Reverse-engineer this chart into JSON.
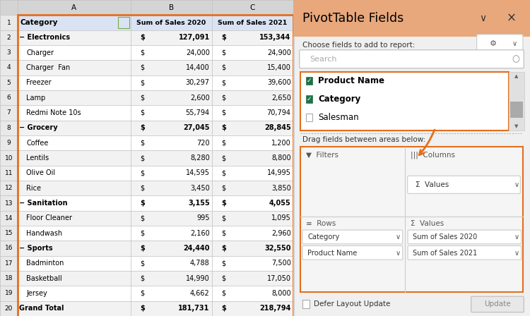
{
  "table": {
    "headers": [
      "Category",
      "Sum of Sales 2020",
      "Sum of Sales 2021"
    ],
    "rows": [
      {
        "label": "− Electronics",
        "bold": true,
        "indent": false,
        "s2020": "127,091",
        "s2021": "153,344",
        "bg": "#f2f2f2"
      },
      {
        "label": "Charger",
        "bold": false,
        "indent": true,
        "s2020": "24,000",
        "s2021": "24,900",
        "bg": "#ffffff"
      },
      {
        "label": "Charger  Fan",
        "bold": false,
        "indent": true,
        "s2020": "14,400",
        "s2021": "15,400",
        "bg": "#f2f2f2"
      },
      {
        "label": "Freezer",
        "bold": false,
        "indent": true,
        "s2020": "30,297",
        "s2021": "39,600",
        "bg": "#ffffff"
      },
      {
        "label": "Lamp",
        "bold": false,
        "indent": true,
        "s2020": "2,600",
        "s2021": "2,650",
        "bg": "#f2f2f2"
      },
      {
        "label": "Redmi Note 10s",
        "bold": false,
        "indent": true,
        "s2020": "55,794",
        "s2021": "70,794",
        "bg": "#ffffff"
      },
      {
        "label": "− Grocery",
        "bold": true,
        "indent": false,
        "s2020": "27,045",
        "s2021": "28,845",
        "bg": "#f2f2f2"
      },
      {
        "label": "Coffee",
        "bold": false,
        "indent": true,
        "s2020": "720",
        "s2021": "1,200",
        "bg": "#ffffff"
      },
      {
        "label": "Lentils",
        "bold": false,
        "indent": true,
        "s2020": "8,280",
        "s2021": "8,800",
        "bg": "#f2f2f2"
      },
      {
        "label": "Olive Oil",
        "bold": false,
        "indent": true,
        "s2020": "14,595",
        "s2021": "14,995",
        "bg": "#ffffff"
      },
      {
        "label": "Rice",
        "bold": false,
        "indent": true,
        "s2020": "3,450",
        "s2021": "3,850",
        "bg": "#f2f2f2"
      },
      {
        "label": "− Sanitation",
        "bold": true,
        "indent": false,
        "s2020": "3,155",
        "s2021": "4,055",
        "bg": "#ffffff"
      },
      {
        "label": "Floor Cleaner",
        "bold": false,
        "indent": true,
        "s2020": "995",
        "s2021": "1,095",
        "bg": "#f2f2f2"
      },
      {
        "label": "Handwash",
        "bold": false,
        "indent": true,
        "s2020": "2,160",
        "s2021": "2,960",
        "bg": "#ffffff"
      },
      {
        "label": "− Sports",
        "bold": true,
        "indent": false,
        "s2020": "24,440",
        "s2021": "32,550",
        "bg": "#f2f2f2"
      },
      {
        "label": "Badminton",
        "bold": false,
        "indent": true,
        "s2020": "4,788",
        "s2021": "7,500",
        "bg": "#ffffff"
      },
      {
        "label": "Basketball",
        "bold": false,
        "indent": true,
        "s2020": "14,990",
        "s2021": "17,050",
        "bg": "#f2f2f2"
      },
      {
        "label": "Jersey",
        "bold": false,
        "indent": true,
        "s2020": "4,662",
        "s2021": "8,000",
        "bg": "#ffffff"
      },
      {
        "label": "Grand Total",
        "bold": true,
        "indent": false,
        "s2020": "181,731",
        "s2021": "218,794",
        "bg": "#f2f2f2"
      }
    ],
    "header_bg": "#dae3f3",
    "border_color": "#bfbfbf",
    "outer_border": "#e36f1e",
    "green_border": "#70ad47"
  },
  "pivot_panel": {
    "bg": "#f0f0f0",
    "header_bg": "#e8a87c",
    "header_text": "PivotTable Fields",
    "subtitle": "Choose fields to add to report:",
    "fields": [
      {
        "name": "Product Name",
        "checked": true
      },
      {
        "name": "Category",
        "checked": true
      },
      {
        "name": "Salesman",
        "checked": false
      }
    ],
    "drag_text": "Drag fields between areas below:",
    "areas": {
      "filters_label": "Filters",
      "columns_label": "Columns",
      "columns_value": "Σ  Values",
      "rows_label": "Rows",
      "rows_items": [
        "Category",
        "Product Name"
      ],
      "values_label": "Values",
      "values_items": [
        "Sum of Sales 2020",
        "Sum of Sales 2021"
      ]
    },
    "defer_text": "Defer Layout Update",
    "update_text": "Update",
    "orange": "#e36f1e"
  }
}
